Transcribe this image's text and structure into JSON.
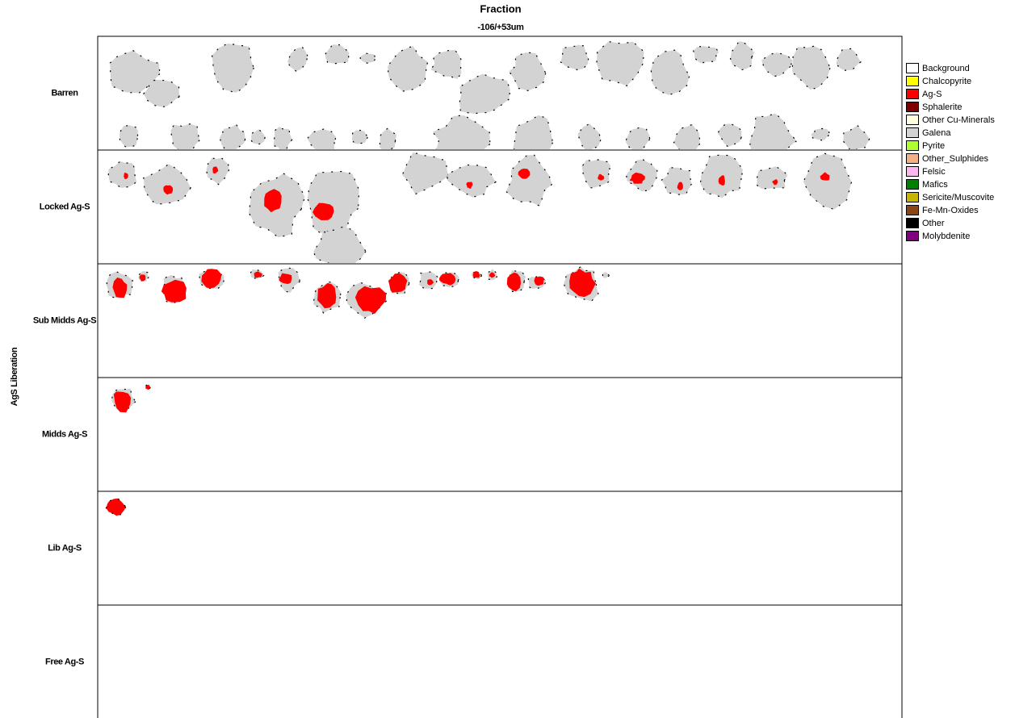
{
  "header": {
    "title": "Fraction",
    "column": "-106/+53um"
  },
  "y_axis_label": "AgS Liberation",
  "rows": [
    "Barren",
    "Locked Ag-S",
    "Sub Midds Ag-S",
    "Midds Ag-S",
    "Lib Ag-S",
    "Free Ag-S"
  ],
  "legend": [
    {
      "name": "Background",
      "color": "#ffffff"
    },
    {
      "name": "Chalcopyrite",
      "color": "#ffff00"
    },
    {
      "name": "Ag-S",
      "color": "#ff0000"
    },
    {
      "name": "Sphalerite",
      "color": "#800000"
    },
    {
      "name": "Other Cu-Minerals",
      "color": "#ffffe0"
    },
    {
      "name": "Galena",
      "color": "#d3d3d3"
    },
    {
      "name": "Pyrite",
      "color": "#adff2f"
    },
    {
      "name": "Other_Sulphides",
      "color": "#f4b183"
    },
    {
      "name": "Felsic",
      "color": "#ffb6f0"
    },
    {
      "name": "Mafics",
      "color": "#008000"
    },
    {
      "name": "Sericite/Muscovite",
      "color": "#c8b400"
    },
    {
      "name": "Fe-Mn-Oxides",
      "color": "#8b4513"
    },
    {
      "name": "Other",
      "color": "#000000"
    },
    {
      "name": "Molybdenite",
      "color": "#800080"
    }
  ]
}
